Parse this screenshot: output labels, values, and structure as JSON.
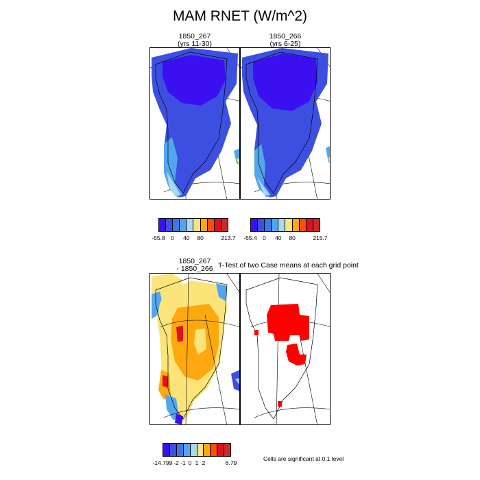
{
  "title": "MAM RNET (W/m^2)",
  "panels": {
    "a": {
      "line1": "1850_267",
      "line2": "(yrs 11-30)"
    },
    "b": {
      "line1": "1850_266",
      "line2": "(yrs 6-25)"
    },
    "c": {
      "line1": "1850_267",
      "line2": "- 1850_266"
    },
    "d": {
      "header": "T-Test of two Case means at each grid point"
    }
  },
  "colorbars": {
    "top_left": {
      "colors": [
        "#3a10f0",
        "#3d4fe0",
        "#3a78e8",
        "#52a6ee",
        "#a9d8ef",
        "#fbe57a",
        "#fda80f",
        "#fb4d0c",
        "#e1101f",
        "#c82b2b"
      ],
      "ticks": [
        "-55.8",
        "0",
        "40",
        "80",
        "213.7"
      ]
    },
    "top_right": {
      "colors": [
        "#3a10f0",
        "#3d4fe0",
        "#3a78e8",
        "#52a6ee",
        "#a9d8ef",
        "#fbe57a",
        "#fda80f",
        "#fb4d0c",
        "#e1101f",
        "#c82b2b"
      ],
      "ticks": [
        "-55.4",
        "0",
        "40",
        "80",
        "215.7"
      ]
    },
    "bottom": {
      "colors": [
        "#3a10f0",
        "#3d4fe0",
        "#3a78e8",
        "#52a6ee",
        "#a9d8ef",
        "#fbe57a",
        "#fda80f",
        "#fb4d0c",
        "#e1101f",
        "#c82b2b"
      ],
      "ticks": [
        "-14.799",
        "-2",
        "-1",
        "0",
        "1",
        "2",
        "6.79"
      ]
    }
  },
  "significance_note": "Cells are significant at 0.1 level",
  "colors": {
    "deep_blue": "#3a10f0",
    "blue": "#3d4fe0",
    "light_blue": "#52a6ee",
    "pale_blue": "#a9d8ef",
    "yellow": "#fbe57a",
    "orange": "#fda80f",
    "red": "#e1101f",
    "significant": "#ff0000"
  }
}
